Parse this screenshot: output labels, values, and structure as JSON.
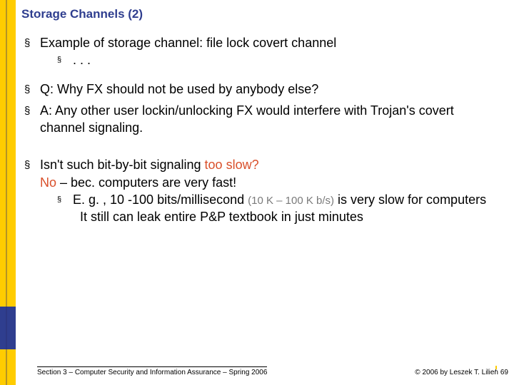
{
  "title": "Storage Channels (2)",
  "bullet_glyph": "§",
  "line1": "Example of storage channel: file lock covert channel",
  "line1a": ". . .",
  "line2": "Q: Why FX should not be used by anybody else?",
  "line3": "A: Any other user lockin/unlocking FX would interfere with Trojan's covert channel signaling.",
  "line4_a": "Isn't such bit-by-bit signaling ",
  "line4_b": "too slow?",
  "line5_a": "No",
  "line5_b": " – bec. computers are very fast!",
  "line6_a": "E. g. , 10 -100 bits/millisecond ",
  "line6_b": "(10 K – 100 K b/s)",
  "line6_c": " is very slow for computers",
  "line7": "It still can leak entire P&P textbook in just minutes",
  "footer_left": "Section 3 – Computer Security and Information Assurance – Spring 2006",
  "footer_right": "© 2006 by Leszek T. Lilien",
  "page_number": "69",
  "page_marker": "'"
}
